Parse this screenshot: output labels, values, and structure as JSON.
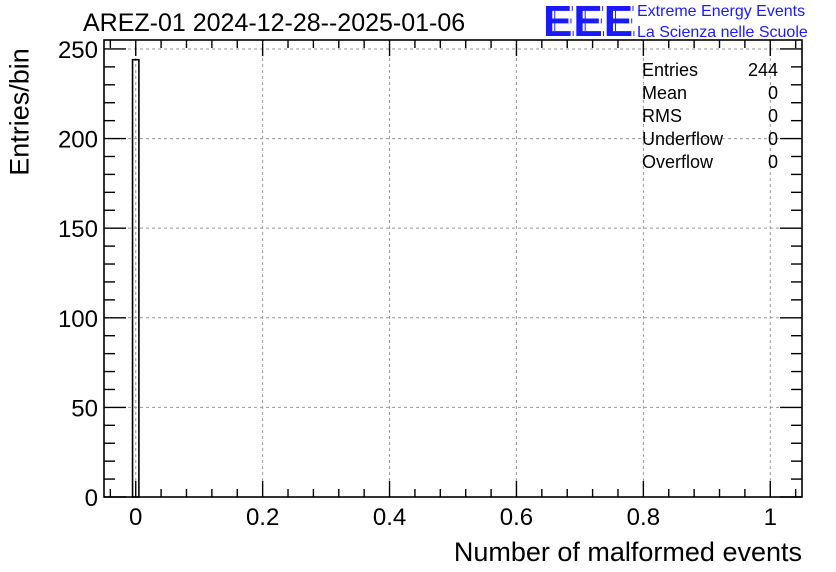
{
  "chart_data": {
    "type": "bar",
    "title": "AREZ-01 2024-12-28--2025-01-06",
    "xlabel": "Number of malformed events",
    "ylabel": "Entries/bin",
    "xlim": [
      -0.05,
      1.05
    ],
    "ylim": [
      0,
      255
    ],
    "xticks": [
      0,
      0.2,
      0.4,
      0.6,
      0.8,
      1
    ],
    "xtick_labels": [
      "0",
      "0.2",
      "0.4",
      "0.6",
      "0.8",
      "1"
    ],
    "yticks": [
      0,
      50,
      100,
      150,
      200,
      250
    ],
    "ytick_labels": [
      "0",
      "50",
      "100",
      "150",
      "200",
      "250"
    ],
    "grid": true,
    "bins": [
      {
        "x_low": -0.005,
        "x_high": 0.005,
        "value": 244
      }
    ]
  },
  "logo": {
    "mark": "EEE",
    "line1": "Extreme Energy Events",
    "line2": "La Scienza nelle Scuole"
  },
  "stats": [
    {
      "label": "Entries",
      "value": "244"
    },
    {
      "label": "Mean",
      "value": "0"
    },
    {
      "label": "RMS",
      "value": "0"
    },
    {
      "label": "Underflow",
      "value": "0"
    },
    {
      "label": "Overflow",
      "value": "0"
    }
  ],
  "colors": {
    "logo": "#1a1aff",
    "grid": "#9a9a9a",
    "axis": "#000000"
  }
}
